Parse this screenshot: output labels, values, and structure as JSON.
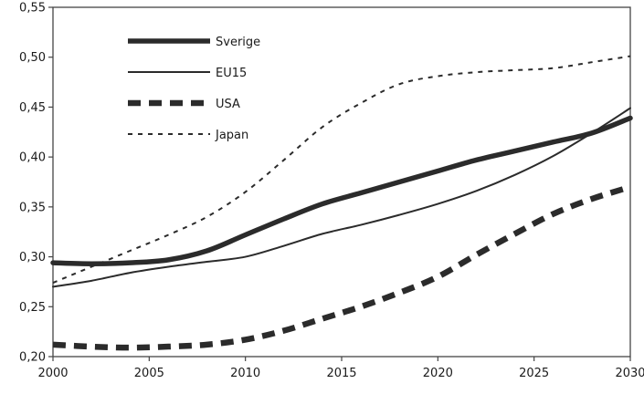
{
  "chart_data": {
    "type": "line",
    "title": "",
    "xlabel": "",
    "ylabel": "",
    "xlim": [
      2000,
      2030
    ],
    "ylim": [
      0.2,
      0.55
    ],
    "x_ticks": [
      "2000",
      "2005",
      "2010",
      "2015",
      "2020",
      "2025",
      "2030"
    ],
    "y_ticks": [
      "0,20",
      "0,25",
      "0,30",
      "0,35",
      "0,40",
      "0,45",
      "0,50",
      "0,55"
    ],
    "grid": false,
    "legend_position": "top-left",
    "series": [
      {
        "name": "Sverige",
        "style": "thick-solid",
        "color": "#2b2b2b",
        "x": [
          2000,
          2002,
          2004,
          2006,
          2008,
          2010,
          2012,
          2014,
          2016,
          2018,
          2020,
          2022,
          2024,
          2026,
          2028,
          2030
        ],
        "y": [
          0.294,
          0.293,
          0.294,
          0.297,
          0.306,
          0.322,
          0.338,
          0.353,
          0.364,
          0.375,
          0.386,
          0.397,
          0.406,
          0.415,
          0.424,
          0.439
        ]
      },
      {
        "name": "EU15",
        "style": "thin-solid",
        "color": "#2b2b2b",
        "x": [
          2000,
          2002,
          2004,
          2006,
          2008,
          2010,
          2012,
          2014,
          2016,
          2018,
          2020,
          2022,
          2024,
          2026,
          2028,
          2030
        ],
        "y": [
          0.27,
          0.276,
          0.284,
          0.29,
          0.295,
          0.3,
          0.311,
          0.323,
          0.332,
          0.342,
          0.353,
          0.366,
          0.382,
          0.401,
          0.424,
          0.449
        ]
      },
      {
        "name": "USA",
        "style": "thick-dashed",
        "color": "#2b2b2b",
        "x": [
          2000,
          2002,
          2004,
          2006,
          2008,
          2010,
          2012,
          2014,
          2016,
          2018,
          2020,
          2022,
          2024,
          2026,
          2028,
          2030
        ],
        "y": [
          0.212,
          0.21,
          0.209,
          0.21,
          0.212,
          0.217,
          0.226,
          0.238,
          0.25,
          0.264,
          0.28,
          0.302,
          0.323,
          0.343,
          0.358,
          0.37
        ]
      },
      {
        "name": "Japan",
        "style": "thin-dashed",
        "color": "#2b2b2b",
        "x": [
          2000,
          2002,
          2004,
          2006,
          2008,
          2010,
          2012,
          2014,
          2016,
          2018,
          2020,
          2022,
          2024,
          2026,
          2028,
          2030
        ],
        "y": [
          0.274,
          0.29,
          0.306,
          0.322,
          0.34,
          0.365,
          0.397,
          0.43,
          0.454,
          0.473,
          0.481,
          0.485,
          0.487,
          0.489,
          0.495,
          0.501
        ]
      }
    ]
  }
}
